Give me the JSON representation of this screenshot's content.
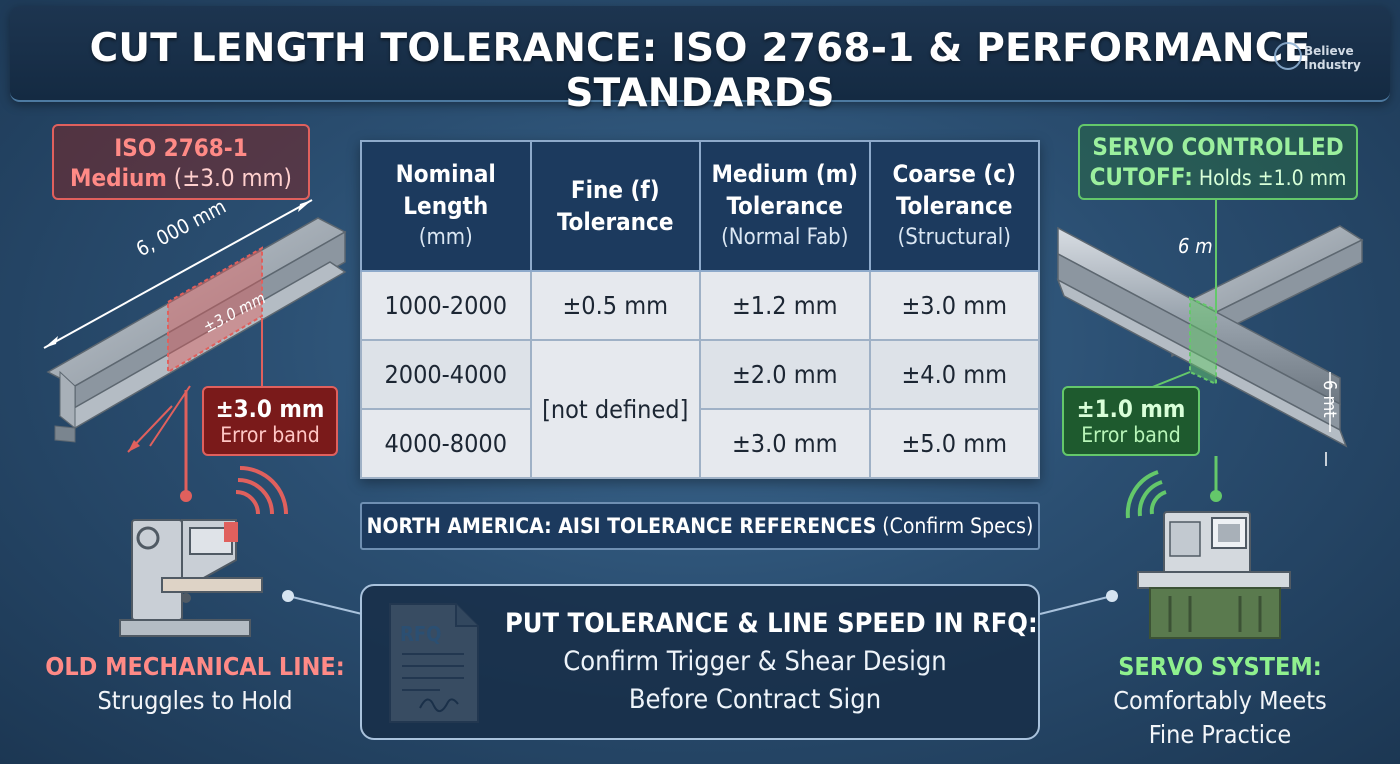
{
  "header": {
    "title": "CUT LENGTH TOLERANCE: ISO 2768-1 & PERFORMANCE STANDARDS",
    "brand_line1": "Believe",
    "brand_line2": "Industry"
  },
  "left_panel": {
    "callout_line1": "ISO 2768-1",
    "callout_line2_bold": "Medium",
    "callout_line2_rest": " (±3.0 mm)",
    "dimension_length": "6, 000 mm",
    "dimension_band": "±3.0 mm",
    "error_value": "±3.0 mm",
    "error_label": "Error band",
    "machine_title": "OLD MECHANICAL LINE:",
    "machine_subtitle": "Struggles to Hold"
  },
  "right_panel": {
    "callout_line1": "SERVO CONTROLLED",
    "callout_line2_bold": "CUTOFF:",
    "callout_line2_rest": " Holds ±1.0 mm",
    "dimension_length": "6 m",
    "dimension_height": "6 mt",
    "error_value": "±1.0 mm",
    "error_label": "Error band",
    "machine_title": "SERVO SYSTEM:",
    "machine_subtitle_line1": "Comfortably Meets",
    "machine_subtitle_line2": "Fine Practice"
  },
  "table": {
    "headers": [
      {
        "line1": "Nominal",
        "line2": "Length",
        "sub": "(mm)"
      },
      {
        "line1": "Fine (f)",
        "line2": "Tolerance",
        "sub": ""
      },
      {
        "line1": "Medium (m)",
        "line2": "Tolerance",
        "sub": "(Normal Fab)"
      },
      {
        "line1": "Coarse (c)",
        "line2": "Tolerance",
        "sub": "(Structural)"
      }
    ],
    "rows": [
      {
        "length": "1000-2000",
        "fine": "±0.5 mm",
        "medium": "±1.2 mm",
        "coarse": "±3.0 mm"
      },
      {
        "length": "2000-4000",
        "fine": "[not defined]",
        "medium": "±2.0 mm",
        "coarse": "±4.0 mm"
      },
      {
        "length": "4000-8000",
        "fine": "",
        "medium": "±3.0 mm",
        "coarse": "±5.0 mm"
      }
    ]
  },
  "note_bar": {
    "bold": "NORTH AMERICA: AISI TOLERANCE REFERENCES",
    "rest": " (Confirm Specs)"
  },
  "rfq": {
    "doc_label": "RFQ",
    "heading": "PUT TOLERANCE & LINE SPEED IN RFQ:",
    "line1": "Confirm Trigger & Shear Design",
    "line2": "Before Contract Sign"
  },
  "colors": {
    "accent_red": "#e0605d",
    "accent_green": "#64c86a",
    "header_blue": "#1c3a5e",
    "background": "#2b4f72"
  }
}
